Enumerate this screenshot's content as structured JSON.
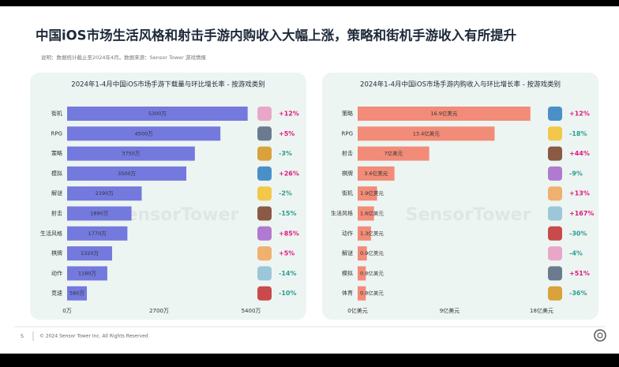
{
  "header": {
    "title": "中国iOS市场生活风格和射击手游内购收入大幅上涨，策略和街机手游收入有所提升",
    "note": "说明：数据统计截止至2024年4月。数据来源：Sensor Tower 游戏情报"
  },
  "watermark": "SensorTower",
  "footer": {
    "page": "5",
    "copyright": "© 2024 Sensor Tower Inc. All Rights Reserved"
  },
  "chart_data": [
    {
      "type": "bar",
      "orientation": "horizontal",
      "title": "2024年1-4月中国iOS市场手游下载量与环比增长率 - 按游戏类别",
      "categories": [
        "街机",
        "RPG",
        "策略",
        "模拟",
        "解谜",
        "射击",
        "生活风格",
        "棋牌",
        "动作",
        "竞速"
      ],
      "values": [
        5300,
        4500,
        3750,
        3500,
        2190,
        1890,
        1770,
        1320,
        1180,
        580
      ],
      "value_labels": [
        "5300万",
        "4500万",
        "3750万",
        "3500万",
        "2190万",
        "1890万",
        "1770万",
        "1320万",
        "1180万",
        "580万"
      ],
      "growth": [
        "+12%",
        "+5%",
        "-3%",
        "+26%",
        "-2%",
        "-15%",
        "+85%",
        "+5%",
        "-14%",
        "-10%"
      ],
      "color": "#7479de",
      "xlim": [
        0,
        5400
      ],
      "xticks": [
        {
          "value": 0,
          "label": "0万"
        },
        {
          "value": 2700,
          "label": "2700万"
        },
        {
          "value": 5400,
          "label": "5400万"
        }
      ]
    },
    {
      "type": "bar",
      "orientation": "horizontal",
      "title": "2024年1-4月中国iOS市场手游内购收入与环比增长率 - 按游戏类别",
      "categories": [
        "策略",
        "RPG",
        "射击",
        "棋牌",
        "街机",
        "生活风格",
        "动作",
        "解谜",
        "模拟",
        "体育"
      ],
      "values": [
        16.9,
        13.4,
        7,
        3.6,
        1.9,
        1.6,
        1.3,
        0.9,
        0.8,
        0.8
      ],
      "value_labels": [
        "16.9亿美元",
        "13.4亿美元",
        "7亿美元",
        "3.6亿美元",
        "1.9亿美元",
        "1.6亿美元",
        "1.3亿美元",
        "0.9亿美元",
        "0.8亿美元",
        "0.8亿美元"
      ],
      "growth": [
        "+12%",
        "-18%",
        "+44%",
        "-9%",
        "+13%",
        "+167%",
        "-30%",
        "-4%",
        "+51%",
        "-36%"
      ],
      "color": "#f28b78",
      "xlim": [
        0,
        18
      ],
      "xticks": [
        {
          "value": 0,
          "label": "0亿美元"
        },
        {
          "value": 9,
          "label": "9亿美元"
        },
        {
          "value": 18,
          "label": "18亿美元"
        }
      ]
    }
  ]
}
